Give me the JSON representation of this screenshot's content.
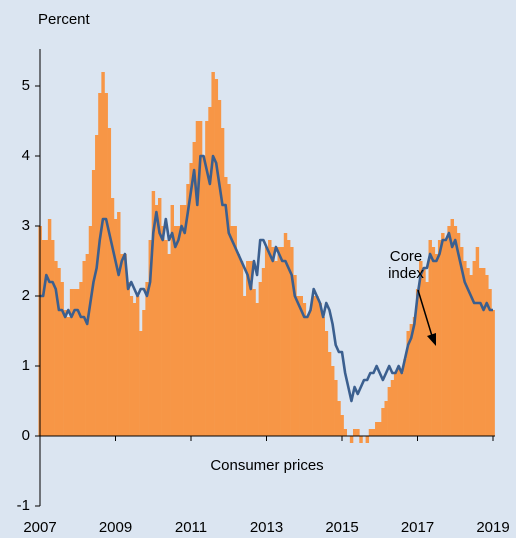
{
  "chart_data": {
    "type": "bar_line",
    "ylabel": "Percent",
    "x": [
      2007,
      2007.083,
      2007.167,
      2007.25,
      2007.333,
      2007.417,
      2007.5,
      2007.583,
      2007.667,
      2007.75,
      2007.833,
      2007.917,
      2008,
      2008.083,
      2008.167,
      2008.25,
      2008.333,
      2008.417,
      2008.5,
      2008.583,
      2008.667,
      2008.75,
      2008.833,
      2008.917,
      2009,
      2009.083,
      2009.167,
      2009.25,
      2009.333,
      2009.417,
      2009.5,
      2009.583,
      2009.667,
      2009.75,
      2009.833,
      2009.917,
      2010,
      2010.083,
      2010.167,
      2010.25,
      2010.333,
      2010.417,
      2010.5,
      2010.583,
      2010.667,
      2010.75,
      2010.833,
      2010.917,
      2011,
      2011.083,
      2011.167,
      2011.25,
      2011.333,
      2011.417,
      2011.5,
      2011.583,
      2011.667,
      2011.75,
      2011.833,
      2011.917,
      2012,
      2012.083,
      2012.167,
      2012.25,
      2012.333,
      2012.417,
      2012.5,
      2012.583,
      2012.667,
      2012.75,
      2012.833,
      2012.917,
      2013,
      2013.083,
      2013.167,
      2013.25,
      2013.333,
      2013.417,
      2013.5,
      2013.583,
      2013.667,
      2013.75,
      2013.833,
      2013.917,
      2014,
      2014.083,
      2014.167,
      2014.25,
      2014.333,
      2014.417,
      2014.5,
      2014.583,
      2014.667,
      2014.75,
      2014.833,
      2014.917,
      2015,
      2015.083,
      2015.167,
      2015.25,
      2015.333,
      2015.417,
      2015.5,
      2015.583,
      2015.667,
      2015.75,
      2015.833,
      2015.917,
      2016,
      2016.083,
      2016.167,
      2016.25,
      2016.333,
      2016.417,
      2016.5,
      2016.583,
      2016.667,
      2016.75,
      2016.833,
      2016.917,
      2017,
      2017.083,
      2017.167,
      2017.25,
      2017.333,
      2017.417,
      2017.5,
      2017.583,
      2017.667,
      2017.75,
      2017.833,
      2017.917,
      2018,
      2018.083,
      2018.167,
      2018.25,
      2018.333,
      2018.417,
      2018.5,
      2018.583,
      2018.667,
      2018.75,
      2018.833,
      2018.917,
      2019
    ],
    "series": [
      {
        "name": "Consumer prices",
        "type": "bar",
        "color": "#f79646",
        "values": [
          3.0,
          2.8,
          2.8,
          3.1,
          2.8,
          2.5,
          2.4,
          2.2,
          1.8,
          1.7,
          2.1,
          2.1,
          2.1,
          2.2,
          2.5,
          2.6,
          3.0,
          3.8,
          4.3,
          4.9,
          5.2,
          4.9,
          4.4,
          3.4,
          3.1,
          3.2,
          2.6,
          2.6,
          2.2,
          2.0,
          1.9,
          2.0,
          1.5,
          1.8,
          2.2,
          2.8,
          3.5,
          3.3,
          3.4,
          3.0,
          2.8,
          2.6,
          3.3,
          3.0,
          3.0,
          3.3,
          3.3,
          3.6,
          3.9,
          4.2,
          4.5,
          4.5,
          4.0,
          4.5,
          4.7,
          5.2,
          5.1,
          4.8,
          4.4,
          3.7,
          3.6,
          3.0,
          3.0,
          2.6,
          2.5,
          2.0,
          2.5,
          2.5,
          2.1,
          1.9,
          2.2,
          2.4,
          2.7,
          2.8,
          2.7,
          2.5,
          2.7,
          2.7,
          2.9,
          2.8,
          2.7,
          2.3,
          2.0,
          2.0,
          1.9,
          1.7,
          1.8,
          2.0,
          2.0,
          1.9,
          1.7,
          1.5,
          1.2,
          1.0,
          0.8,
          0.5,
          0.3,
          0.1,
          0.0,
          -0.1,
          0.1,
          0.1,
          -0.1,
          0.0,
          -0.1,
          0.1,
          0.1,
          0.2,
          0.2,
          0.4,
          0.5,
          0.7,
          0.8,
          0.9,
          1.0,
          0.9,
          1.1,
          1.5,
          1.6,
          1.7,
          2.1,
          2.5,
          2.4,
          2.2,
          2.8,
          2.7,
          2.6,
          2.8,
          2.9,
          2.8,
          3.0,
          3.1,
          3.0,
          2.9,
          2.7,
          2.5,
          2.4,
          2.3,
          2.5,
          2.7,
          2.4,
          2.4,
          2.3,
          2.1,
          1.8
        ]
      },
      {
        "name": "Core index",
        "type": "line",
        "color": "#3b5f8f",
        "values": [
          2.0,
          2.0,
          2.3,
          2.2,
          2.2,
          2.1,
          1.8,
          1.8,
          1.7,
          1.8,
          1.7,
          1.8,
          1.8,
          1.7,
          1.7,
          1.6,
          1.9,
          2.2,
          2.4,
          2.8,
          3.1,
          3.1,
          2.9,
          2.7,
          2.5,
          2.3,
          2.5,
          2.6,
          2.1,
          2.2,
          2.1,
          2.0,
          2.1,
          2.1,
          2.0,
          2.2,
          2.9,
          3.2,
          2.9,
          2.8,
          3.1,
          2.8,
          2.9,
          2.7,
          2.8,
          3.0,
          2.9,
          3.2,
          3.5,
          3.8,
          3.3,
          4.0,
          4.0,
          3.8,
          3.6,
          4.0,
          3.9,
          3.6,
          3.3,
          3.3,
          2.9,
          2.8,
          2.7,
          2.6,
          2.5,
          2.4,
          2.3,
          2.1,
          2.5,
          2.3,
          2.8,
          2.8,
          2.7,
          2.6,
          2.5,
          2.7,
          2.6,
          2.5,
          2.5,
          2.4,
          2.3,
          2.0,
          1.9,
          1.8,
          1.7,
          1.7,
          1.8,
          2.1,
          2.0,
          1.9,
          1.7,
          1.9,
          1.8,
          1.6,
          1.3,
          1.2,
          1.2,
          0.9,
          0.7,
          0.5,
          0.7,
          0.6,
          0.7,
          0.8,
          0.8,
          0.9,
          0.9,
          1.0,
          0.9,
          0.8,
          0.9,
          1.0,
          0.9,
          0.9,
          1.0,
          0.9,
          1.1,
          1.3,
          1.4,
          1.6,
          2.0,
          2.3,
          2.4,
          2.4,
          2.6,
          2.5,
          2.5,
          2.6,
          2.8,
          2.8,
          2.9,
          2.7,
          2.8,
          2.6,
          2.4,
          2.2,
          2.1,
          2.0,
          1.9,
          1.9,
          1.9,
          1.8,
          1.9,
          1.8,
          1.8
        ]
      }
    ],
    "xlim": [
      2007,
      2019
    ],
    "xticks": [
      2007,
      2009,
      2011,
      2013,
      2015,
      2017,
      2019
    ],
    "ylim": [
      -1,
      5.5
    ],
    "yticks": [
      -1,
      0,
      1,
      2,
      3,
      4,
      5
    ]
  }
}
